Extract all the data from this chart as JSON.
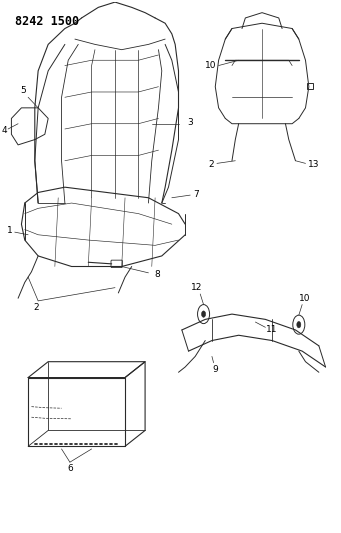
{
  "title": "8242 1500",
  "bg_color": "#ffffff",
  "line_color": "#2a2a2a",
  "figsize": [
    3.41,
    5.33
  ],
  "dpi": 100,
  "label_fontsize": 6.5,
  "title_fontsize": 8.5
}
